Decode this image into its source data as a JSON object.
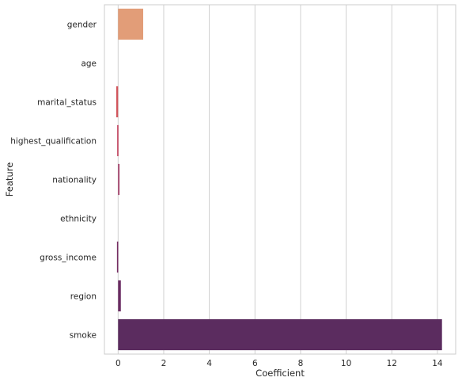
{
  "chart_data": {
    "type": "bar",
    "orientation": "horizontal",
    "categories": [
      "gender",
      "age",
      "marital_status",
      "highest_qualification",
      "nationality",
      "ethnicity",
      "gross_income",
      "region",
      "smoke"
    ],
    "values": [
      1.1,
      0.0,
      -0.08,
      -0.04,
      0.06,
      0.0,
      -0.05,
      0.12,
      14.2
    ],
    "bar_colors": [
      "#e29d78",
      "#db7f64",
      "#d1555c",
      "#c03f5a",
      "#a23a66",
      "#8a3268",
      "#752d62",
      "#6a2c62",
      "#5b2c5f"
    ],
    "xlabel": "Coefficient",
    "ylabel": "Feature",
    "xlim": [
      -0.6,
      14.8
    ],
    "xticks": [
      0,
      2,
      4,
      6,
      8,
      10,
      12,
      14
    ],
    "grid": "vertical",
    "frame_color": "#cccccc",
    "grid_color": "#cccccc"
  }
}
